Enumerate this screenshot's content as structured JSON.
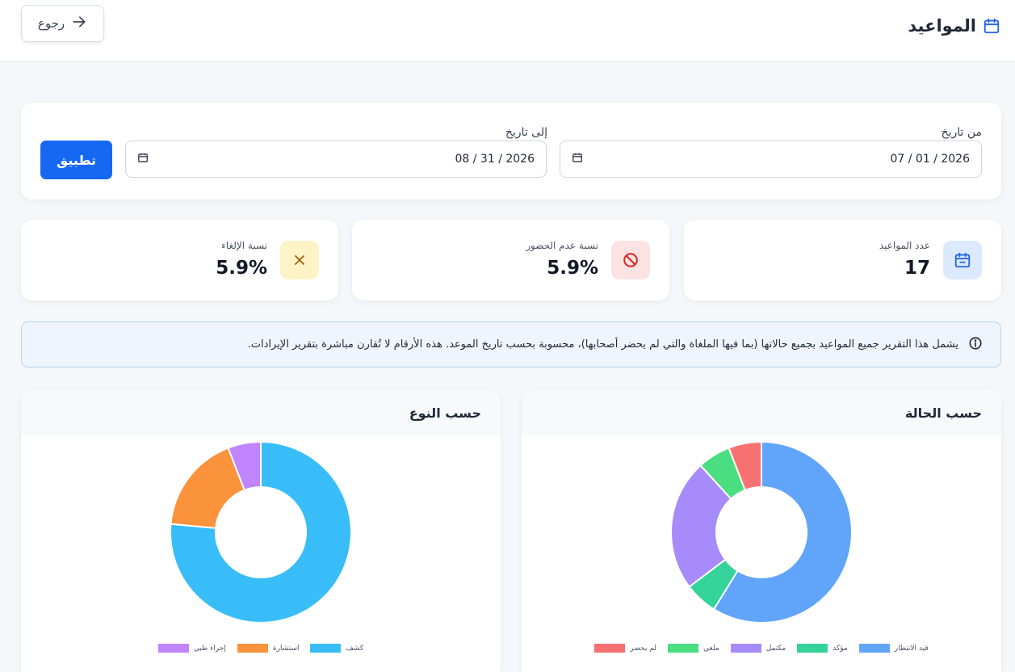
{
  "header": {
    "title": "المواعيد",
    "back_label": "رجوع"
  },
  "filters": {
    "from_label": "من تاريخ",
    "from_value": "07 / 01 / 2026",
    "to_label": "إلى تاريخ",
    "to_value": "08 / 31 / 2026",
    "apply_label": "تطبيق"
  },
  "stats": [
    {
      "label": "عدد المواعيد",
      "value": "17",
      "icon": "calendar-icon",
      "icon_bg": "#dbeafe",
      "icon_color": "#2563eb"
    },
    {
      "label": "نسبة عدم الحضور",
      "value": "5.9%",
      "icon": "ban-icon",
      "icon_bg": "#fde2e2",
      "icon_color": "#dc2626"
    },
    {
      "label": "نسبة الإلغاء",
      "value": "5.9%",
      "icon": "x-icon",
      "icon_bg": "#fef3c7",
      "icon_color": "#a16207"
    }
  ],
  "info": {
    "text": "يشمل هذا التقرير جميع المواعيد بجميع حالاتها (بما فيها الملغاة والتي لم يحضر أصحابها)، محسوبة بحسب تاريخ الموعد. هذه الأرقام لا تُقارن مباشرة بتقرير الإيرادات."
  },
  "chart_data": [
    {
      "type": "pie",
      "title": "حسب الحالة",
      "categories": [
        "قيد الانتظار",
        "مؤكد",
        "مكتمل",
        "ملغي",
        "لم يحضر"
      ],
      "values": [
        10,
        1,
        4,
        1,
        1
      ],
      "colors": [
        "#60a5fa",
        "#34d399",
        "#a78bfa",
        "#4ade80",
        "#f87171"
      ]
    },
    {
      "type": "pie",
      "title": "حسب النوع",
      "categories": [
        "كشف",
        "استشارة",
        "إجراء طبي"
      ],
      "values": [
        13,
        3,
        1
      ],
      "colors": [
        "#38bdf8",
        "#fb923c",
        "#c084fc"
      ]
    }
  ]
}
